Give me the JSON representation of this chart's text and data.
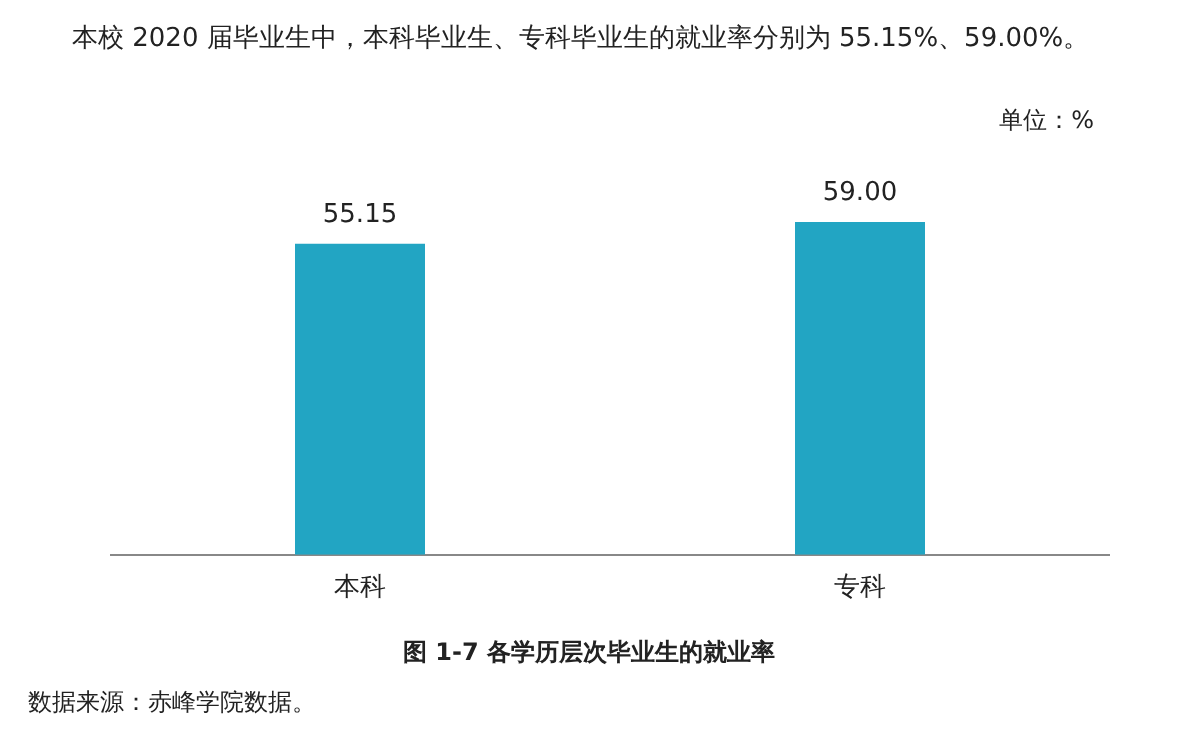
{
  "chart_data": {
    "type": "bar",
    "subtitle": "本校 2020 届毕业生中，本科毕业生、专科毕业生的就业率分别为 55.15%、59.00%。",
    "ylabel": "单位：%",
    "title": "图 1-7  各学历层次毕业生的就业率",
    "annotations": [
      "数据来源：赤峰学院数据。"
    ],
    "categories": [
      "本科",
      "专科"
    ],
    "values": [
      55.15,
      59.0
    ],
    "color": "#22a5c3",
    "value_labels": [
      "55.15",
      "59.00"
    ],
    "grid": false,
    "legend": false
  }
}
